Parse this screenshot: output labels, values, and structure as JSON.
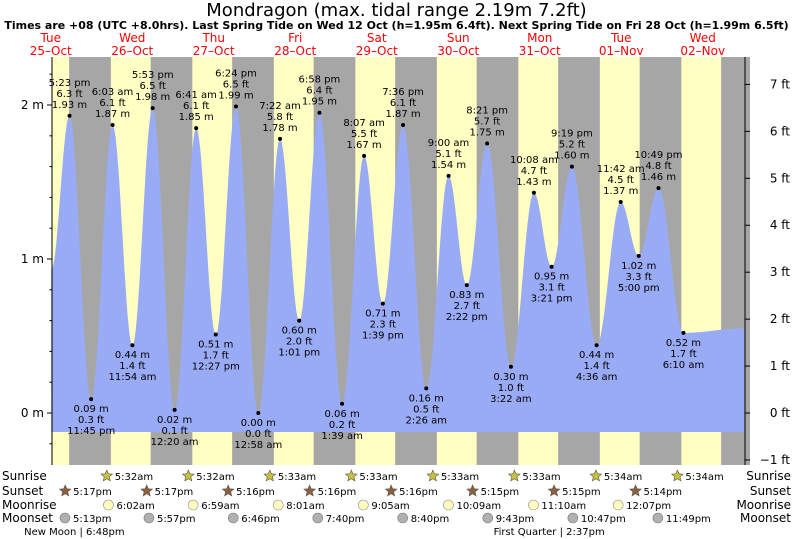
{
  "chart_data": {
    "type": "area",
    "title": "Mondragon (max. tidal range 2.19m 7.2ft)",
    "subtitle": "Times are +08 (UTC +8.0hrs). Last Spring Tide on Wed 12 Oct (h=1.95m 6.4ft). Next Spring Tide on Fri 28 Oct (h=1.99m 6.5ft)",
    "day_headers": [
      {
        "dow": "Tue",
        "date": "25–Oct"
      },
      {
        "dow": "Wed",
        "date": "26–Oct"
      },
      {
        "dow": "Thu",
        "date": "27–Oct"
      },
      {
        "dow": "Fri",
        "date": "28–Oct"
      },
      {
        "dow": "Sat",
        "date": "29–Oct"
      },
      {
        "dow": "Sun",
        "date": "30–Oct"
      },
      {
        "dow": "Mon",
        "date": "31–Oct"
      },
      {
        "dow": "Tue",
        "date": "01–Nov"
      },
      {
        "dow": "Wed",
        "date": "02–Nov"
      }
    ],
    "y_axis_m": {
      "range": [
        -0.25,
        2.3
      ],
      "ticks": [
        0,
        1,
        2
      ],
      "labels": [
        "0 m",
        "1 m",
        "2 m"
      ]
    },
    "y_axis_ft": {
      "ticks": [
        -1,
        0,
        1,
        2,
        3,
        4,
        5,
        6,
        7
      ],
      "labels": [
        "−1 ft",
        "0 ft",
        "1 ft",
        "2 ft",
        "3 ft",
        "4 ft",
        "5 ft",
        "6 ft",
        "7 ft"
      ]
    },
    "time_range_h": [
      12.0,
      216.0
    ],
    "series_start": {
      "t": 12.0,
      "h": 0.93
    },
    "series_end": {
      "t": 216.0,
      "h": 0.55
    },
    "tides": [
      {
        "t": 17.38,
        "type": "high",
        "time": "5:23 pm",
        "m": "1.93 m",
        "ft": "6.3 ft",
        "h": 1.93
      },
      {
        "t": 23.75,
        "type": "low",
        "time": "11:45 pm",
        "m": "0.09 m",
        "ft": "0.3 ft",
        "h": 0.09
      },
      {
        "t": 30.05,
        "type": "high",
        "time": "6:03 am",
        "m": "1.87 m",
        "ft": "6.1 ft",
        "h": 1.87
      },
      {
        "t": 35.9,
        "type": "low",
        "time": "11:54 am",
        "m": "0.44 m",
        "ft": "1.4 ft",
        "h": 0.44
      },
      {
        "t": 41.88,
        "type": "high",
        "time": "5:53 pm",
        "m": "1.98 m",
        "ft": "6.5 ft",
        "h": 1.98
      },
      {
        "t": 48.33,
        "type": "low",
        "time": "12:20 am",
        "m": "0.02 m",
        "ft": "0.1 ft",
        "h": 0.02
      },
      {
        "t": 54.68,
        "type": "high",
        "time": "6:41 am",
        "m": "1.85 m",
        "ft": "6.1 ft",
        "h": 1.85
      },
      {
        "t": 60.45,
        "type": "low",
        "time": "12:27 pm",
        "m": "0.51 m",
        "ft": "1.7 ft",
        "h": 0.51
      },
      {
        "t": 66.4,
        "type": "high",
        "time": "6:24 pm",
        "m": "1.99 m",
        "ft": "6.5 ft",
        "h": 1.99
      },
      {
        "t": 72.97,
        "type": "low",
        "time": "12:58 am",
        "m": "0.00 m",
        "ft": "0.0 ft",
        "h": 0.0
      },
      {
        "t": 79.37,
        "type": "high",
        "time": "7:22 am",
        "m": "1.78 m",
        "ft": "5.8 ft",
        "h": 1.78
      },
      {
        "t": 85.02,
        "type": "low",
        "time": "1:01 pm",
        "m": "0.60 m",
        "ft": "2.0 ft",
        "h": 0.6
      },
      {
        "t": 90.97,
        "type": "high",
        "time": "6:58 pm",
        "m": "1.95 m",
        "ft": "6.4 ft",
        "h": 1.95
      },
      {
        "t": 97.65,
        "type": "low",
        "time": "1:39 am",
        "m": "0.06 m",
        "ft": "0.2 ft",
        "h": 0.06
      },
      {
        "t": 104.12,
        "type": "high",
        "time": "8:07 am",
        "m": "1.67 m",
        "ft": "5.5 ft",
        "h": 1.67
      },
      {
        "t": 109.65,
        "type": "low",
        "time": "1:39 pm",
        "m": "0.71 m",
        "ft": "2.3 ft",
        "h": 0.71
      },
      {
        "t": 115.6,
        "type": "high",
        "time": "7:36 pm",
        "m": "1.87 m",
        "ft": "6.1 ft",
        "h": 1.87
      },
      {
        "t": 122.43,
        "type": "low",
        "time": "2:26 am",
        "m": "0.16 m",
        "ft": "0.5 ft",
        "h": 0.16
      },
      {
        "t": 129.0,
        "type": "high",
        "time": "9:00 am",
        "m": "1.54 m",
        "ft": "5.1 ft",
        "h": 1.54
      },
      {
        "t": 134.37,
        "type": "low",
        "time": "2:22 pm",
        "m": "0.83 m",
        "ft": "2.7 ft",
        "h": 0.83
      },
      {
        "t": 140.35,
        "type": "high",
        "time": "8:21 pm",
        "m": "1.75 m",
        "ft": "5.7 ft",
        "h": 1.75
      },
      {
        "t": 147.37,
        "type": "low",
        "time": "3:22 am",
        "m": "0.30 m",
        "ft": "1.0 ft",
        "h": 0.3
      },
      {
        "t": 154.13,
        "type": "high",
        "time": "10:08 am",
        "m": "1.43 m",
        "ft": "4.7 ft",
        "h": 1.43
      },
      {
        "t": 159.35,
        "type": "low",
        "time": "3:21 pm",
        "m": "0.95 m",
        "ft": "3.1 ft",
        "h": 0.95
      },
      {
        "t": 165.32,
        "type": "high",
        "time": "9:19 pm",
        "m": "1.60 m",
        "ft": "5.2 ft",
        "h": 1.6
      },
      {
        "t": 172.6,
        "type": "low",
        "time": "4:36 am",
        "m": "0.44 m",
        "ft": "1.4 ft",
        "h": 0.44
      },
      {
        "t": 179.7,
        "type": "high",
        "time": "11:42 am",
        "m": "1.37 m",
        "ft": "4.5 ft",
        "h": 1.37
      },
      {
        "t": 185.0,
        "type": "low",
        "time": "5:00 pm",
        "m": "1.02 m",
        "ft": "3.3 ft",
        "h": 1.02
      },
      {
        "t": 190.82,
        "type": "high",
        "time": "10:49 pm",
        "m": "1.46 m",
        "ft": "4.8 ft",
        "h": 1.46
      },
      {
        "t": 198.17,
        "type": "low",
        "time": "6:10 am",
        "m": "0.52 m",
        "ft": "1.7 ft",
        "h": 0.52
      }
    ],
    "sun": [
      {
        "day": 0,
        "rise": null,
        "set": 17.28,
        "rise_label": "",
        "set_label": "5:17pm"
      },
      {
        "day": 1,
        "rise": 5.53,
        "set": 17.28,
        "rise_label": "5:32am",
        "set_label": "5:17pm"
      },
      {
        "day": 2,
        "rise": 5.53,
        "set": 17.27,
        "rise_label": "5:32am",
        "set_label": "5:16pm"
      },
      {
        "day": 3,
        "rise": 5.55,
        "set": 17.27,
        "rise_label": "5:33am",
        "set_label": "5:16pm"
      },
      {
        "day": 4,
        "rise": 5.55,
        "set": 17.27,
        "rise_label": "5:33am",
        "set_label": "5:16pm"
      },
      {
        "day": 5,
        "rise": 5.55,
        "set": 17.25,
        "rise_label": "5:33am",
        "set_label": "5:15pm"
      },
      {
        "day": 6,
        "rise": 5.55,
        "set": 17.25,
        "rise_label": "5:33am",
        "set_label": "5:15pm"
      },
      {
        "day": 7,
        "rise": 5.57,
        "set": 17.23,
        "rise_label": "5:34am",
        "set_label": "5:14pm"
      },
      {
        "day": 8,
        "rise": 5.57,
        "set": null,
        "rise_label": "5:34am",
        "set_label": ""
      }
    ],
    "moonrise": [
      {
        "t": 30.03,
        "label": "6:02am"
      },
      {
        "t": 54.98,
        "label": "6:59am"
      },
      {
        "t": 80.02,
        "label": "8:01am"
      },
      {
        "t": 105.08,
        "label": "9:05am"
      },
      {
        "t": 130.15,
        "label": "10:09am"
      },
      {
        "t": 155.17,
        "label": "11:10am"
      },
      {
        "t": 180.12,
        "label": "12:07pm"
      }
    ],
    "moonset": [
      {
        "t": 17.22,
        "label": "5:13pm"
      },
      {
        "t": 41.95,
        "label": "5:57pm"
      },
      {
        "t": 66.77,
        "label": "6:46pm"
      },
      {
        "t": 91.67,
        "label": "7:40pm"
      },
      {
        "t": 116.67,
        "label": "8:40pm"
      },
      {
        "t": 141.72,
        "label": "9:43pm"
      },
      {
        "t": 166.78,
        "label": "10:47pm"
      },
      {
        "t": 191.82,
        "label": "11:49pm"
      }
    ],
    "moon_phases": [
      {
        "label": "New Moon | 6:48pm",
        "t": 18.8
      },
      {
        "label": "First Quarter | 2:37pm",
        "t": 158.62
      }
    ],
    "row_labels": {
      "sunrise": "Sunrise",
      "sunset": "Sunset",
      "moonrise": "Moonrise",
      "moonset": "Moonset"
    },
    "colors": {
      "day": "#ffffc4",
      "night": "#a6a6a6",
      "water": "#9aabf5",
      "star": "#c9c23a",
      "sunset_star": "#8f5e3a",
      "moonrise": "#fffcc0",
      "moonset": "#b0b0b0"
    }
  }
}
